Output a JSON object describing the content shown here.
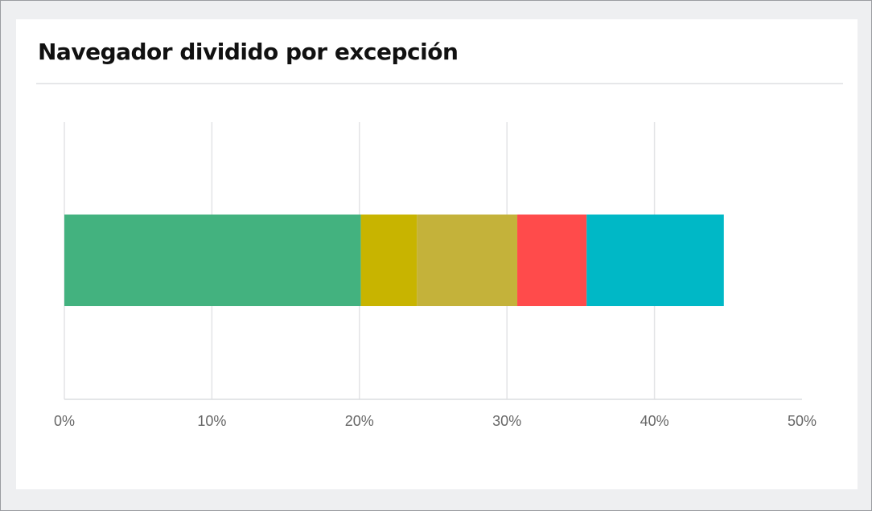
{
  "chart_data": {
    "type": "bar",
    "orientation": "horizontal",
    "stacked": true,
    "title": "Navegador dividido por excepción",
    "xlabel": "",
    "ylabel": "",
    "xlim": [
      0,
      50
    ],
    "x_tick_values": [
      0,
      10,
      20,
      30,
      40,
      50
    ],
    "x_tick_labels": [
      "0%",
      "10%",
      "20%",
      "30%",
      "40%",
      "50%"
    ],
    "grid": true,
    "legend": "none",
    "categories": [
      ""
    ],
    "series": [
      {
        "color": "#43b27f",
        "values": [
          20.1
        ]
      },
      {
        "color": "#c8b400",
        "values": [
          3.8
        ]
      },
      {
        "color": "#c4b23a",
        "values": [
          6.8
        ]
      },
      {
        "color": "#ff4b4b",
        "values": [
          4.7
        ]
      },
      {
        "color": "#00b8c6",
        "values": [
          9.3
        ]
      }
    ]
  }
}
